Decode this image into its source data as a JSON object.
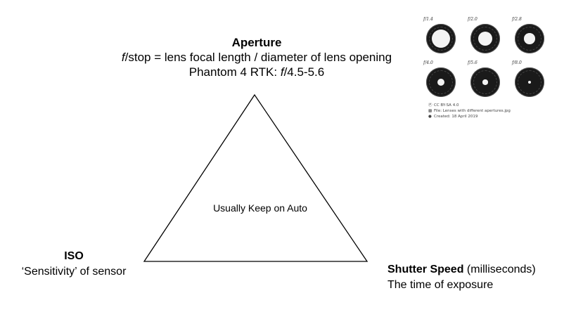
{
  "aperture": {
    "title": "Aperture",
    "formula_f": "f",
    "formula_rest": "/stop = lens focal length / diameter of lens opening",
    "phantom_prefix": "Phantom 4 RTK: ",
    "phantom_f": "f",
    "phantom_range": "/4.5-5.6"
  },
  "center": {
    "label": "Usually Keep on Auto"
  },
  "iso": {
    "title": "ISO",
    "desc": "‘Sensitivity’ of sensor"
  },
  "shutter": {
    "title": "Shutter Speed",
    "unit": " (milliseconds)",
    "desc": "The time of exposure"
  },
  "lens_image": {
    "labels": [
      "f/1.4",
      "f/2.0",
      "f/2.8",
      "f/4.0",
      "f/5.6",
      "f/8.0"
    ],
    "openings": [
      1.0,
      0.8,
      0.6,
      0.42,
      0.28,
      0.16
    ],
    "license": "CC BY-SA 4.0",
    "file": "File: Lenses with different apertures.jpg",
    "created": "Created: 18 April 2019"
  }
}
